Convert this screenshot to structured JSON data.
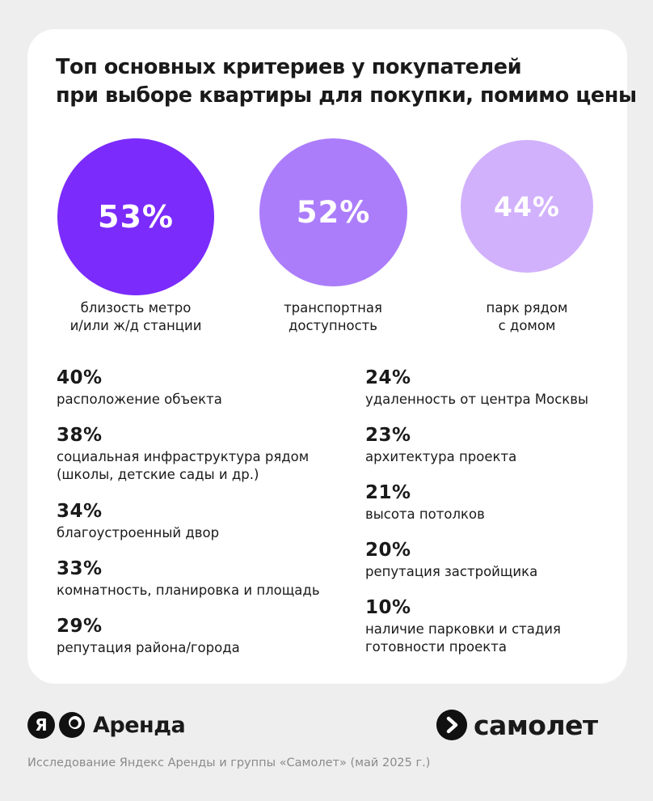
{
  "title_lines": [
    "Топ основных критериев у покупателей",
    "при выборе квартиры для покупки, помимо цены"
  ],
  "chart_data": {
    "type": "bar",
    "title": "Топ основных критериев у покупателей при выборе квартиры для покупки, помимо цены",
    "unit": "%",
    "categories": [
      "близость метро и/или ж/д станции",
      "транспортная доступность",
      "парк рядом с домом",
      "расположение объекта",
      "социальная инфраструктура рядом (школы, детские сады и др.)",
      "благоустроенный двор",
      "комнатность, планировка и площадь",
      "репутация района/города",
      "удаленность от центра Москвы",
      "архитектура проекта",
      "высота потолков",
      "репутация застройщика",
      "наличие парковки и стадия готовности проекта"
    ],
    "values": [
      53,
      52,
      44,
      40,
      38,
      34,
      33,
      29,
      24,
      23,
      21,
      20,
      10
    ]
  },
  "top": [
    {
      "pct": "53%",
      "label_lines": [
        "близость метро",
        "и/или ж/д станции"
      ],
      "color": "#7b2bfc"
    },
    {
      "pct": "52%",
      "label_lines": [
        "транспортная",
        "доступность"
      ],
      "color": "#ab7dfb"
    },
    {
      "pct": "44%",
      "label_lines": [
        "парк рядом",
        "с домом"
      ],
      "color": "#d1b1fc"
    }
  ],
  "left_list": [
    {
      "pct": "40%",
      "lines": [
        "расположение объекта"
      ]
    },
    {
      "pct": "38%",
      "lines": [
        "социальная инфраструктура рядом",
        "(школы, детские сады и др.)"
      ]
    },
    {
      "pct": "34%",
      "lines": [
        "благоустроенный двор"
      ]
    },
    {
      "pct": "33%",
      "lines": [
        "комнатность, планировка и площадь"
      ]
    },
    {
      "pct": "29%",
      "lines": [
        "репутация района/города"
      ]
    }
  ],
  "right_list": [
    {
      "pct": "24%",
      "lines": [
        "удаленность от центра Москвы"
      ]
    },
    {
      "pct": "23%",
      "lines": [
        "архитектура проекта"
      ]
    },
    {
      "pct": "21%",
      "lines": [
        "высота потолков"
      ]
    },
    {
      "pct": "20%",
      "lines": [
        "репутация застройщика"
      ]
    },
    {
      "pct": "10%",
      "lines": [
        "наличие парковки и стадия",
        "готовности проекта"
      ]
    }
  ],
  "footer": {
    "ya_letter": "Я",
    "arenda_text": "Аренда",
    "samolet_text": "самолет",
    "source": "Исследование Яндекс Аренды и группы «Самолет» (май 2025 г.)",
    "ya_logo_icon": "yandex-logo-icon",
    "arenda_logo_icon": "arenda-logo-icon",
    "samolet_logo_icon": "samolet-logo-icon"
  }
}
